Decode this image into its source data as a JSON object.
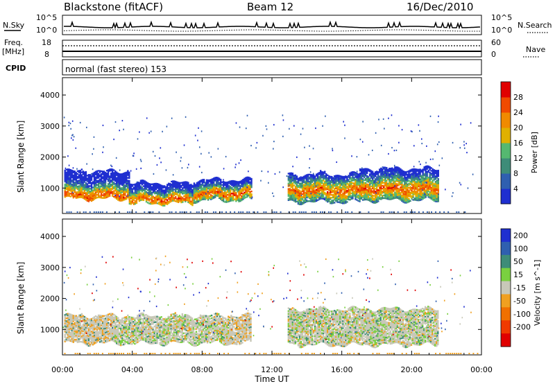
{
  "header": {
    "station": "Blackstone (fitACF)",
    "beam": "Beam 12",
    "date": "16/Dec/2010",
    "mode": "normal (fast stereo) 153"
  },
  "noise_panel": {
    "left_label": "N.Sky",
    "left_top": "10^5",
    "left_bottom": "10^0",
    "right_top": "10^5",
    "right_bottom": "10^0",
    "right_label": "N.Search"
  },
  "freq_panel": {
    "left_label": "Freq.",
    "left_unit": "[MHz]",
    "left_top": "18",
    "left_bottom": "8",
    "right_top": "60",
    "right_bottom": "0",
    "right_label": "Nave",
    "cpid_label": "CPID"
  },
  "colors": {
    "power": [
      "#1f2fd0",
      "#2f5fb0",
      "#3e8c78",
      "#55b870",
      "#e0b000",
      "#f08a00",
      "#f04a00",
      "#e00000"
    ],
    "velocity": [
      "#1f2fd0",
      "#2f5fb0",
      "#3e8c78",
      "#7ad040",
      "#c8c8b8",
      "#f0a020",
      "#f07000",
      "#f03a00",
      "#e00000"
    ]
  },
  "chart_data": [
    {
      "type": "heatmap",
      "title": "Power",
      "xlabel": "",
      "ylabel": "Slant Range [km]",
      "x_ticks": [
        "00:00",
        "04:00",
        "08:00",
        "12:00",
        "16:00",
        "20:00",
        "00:00"
      ],
      "xlim": [
        0,
        24
      ],
      "y_ticks": [
        "1000",
        "2000",
        "3000",
        "4000"
      ],
      "ylim": [
        180,
        4560
      ],
      "colorbar": {
        "label": "Power [dB]",
        "ticks": [
          "4",
          "8",
          "12",
          "16",
          "20",
          "24",
          "28"
        ],
        "range": [
          0,
          32
        ]
      },
      "bands": [
        {
          "t_start": 0.1,
          "t_end": 3.8,
          "range_low": 650,
          "range_high": 1550,
          "peak_range": 750
        },
        {
          "t_start": 3.8,
          "t_end": 7.5,
          "range_low": 500,
          "range_high": 1150,
          "peak_range": 620
        },
        {
          "t_start": 7.5,
          "t_end": 10.8,
          "range_low": 600,
          "range_high": 1250,
          "peak_range": 800
        },
        {
          "t_start": 12.9,
          "t_end": 17.0,
          "range_low": 550,
          "range_high": 1450,
          "peak_range": 900
        },
        {
          "t_start": 17.0,
          "t_end": 21.5,
          "range_low": 600,
          "range_high": 1600,
          "peak_range": 950
        }
      ]
    },
    {
      "type": "heatmap",
      "title": "Velocity",
      "xlabel": "Time UT",
      "ylabel": "Slant Range [km]",
      "x_ticks": [
        "00:00",
        "04:00",
        "08:00",
        "12:00",
        "16:00",
        "20:00",
        "00:00"
      ],
      "xlim": [
        0,
        24
      ],
      "y_ticks": [
        "1000",
        "2000",
        "3000",
        "4000"
      ],
      "ylim": [
        180,
        4560
      ],
      "colorbar": {
        "label": "Velocity [m s^-1]",
        "ticks": [
          "200",
          "100",
          "50",
          "15",
          "-15",
          "-50",
          "-100",
          "-200"
        ]
      },
      "bands": [
        {
          "t_start": 0.1,
          "t_end": 10.8,
          "range_low": 550,
          "range_high": 1450,
          "dominant": "-15 to 15, with -50 patches"
        },
        {
          "t_start": 12.9,
          "t_end": 21.5,
          "range_low": 500,
          "range_high": 1650,
          "dominant": "-15 to 15"
        }
      ]
    }
  ]
}
